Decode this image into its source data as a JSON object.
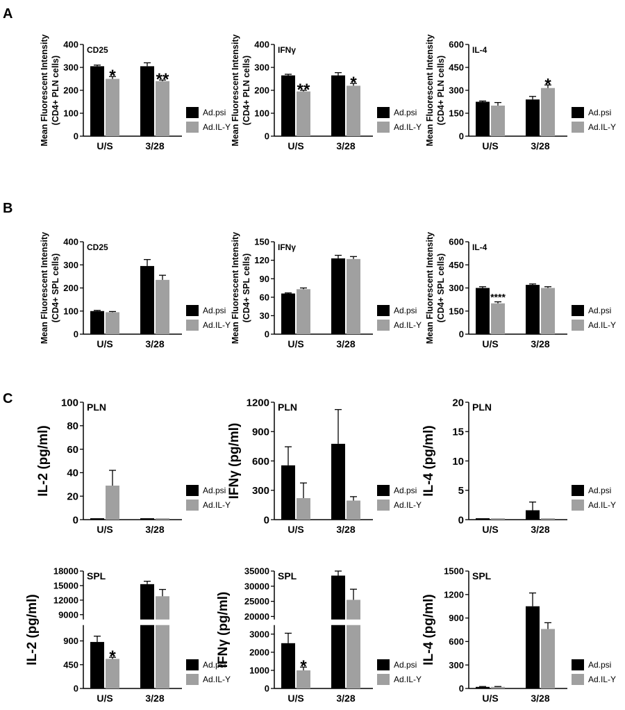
{
  "figure": {
    "panel_letters": [
      "A",
      "B",
      "C"
    ],
    "legend_labels": [
      "Ad.psi",
      "Ad.IL-Y"
    ],
    "colors": {
      "Ad.psi": "#000000",
      "Ad.IL-Y": "#a0a0a0"
    }
  },
  "chart_data": [
    {
      "type": "bar",
      "panel": "A",
      "subtitle": "CD25",
      "ylabel": "Mean Fluorescent Intensity (CD4+ PLN cells)",
      "categories": [
        "U/S",
        "3/28"
      ],
      "ylim": [
        0,
        400
      ],
      "yticks": [
        0,
        100,
        200,
        300,
        400
      ],
      "series": [
        {
          "name": "Ad.psi",
          "values": [
            305,
            305
          ],
          "errors": [
            5,
            15
          ]
        },
        {
          "name": "Ad.IL-Y",
          "values": [
            250,
            240
          ],
          "errors": [
            10,
            5
          ]
        }
      ],
      "annotations": [
        "*",
        "**"
      ]
    },
    {
      "type": "bar",
      "panel": "A",
      "subtitle": "IFNγ",
      "ylabel": "Mean Fluorescent Intensity (CD4+ PLN cells)",
      "categories": [
        "U/S",
        "3/28"
      ],
      "ylim": [
        0,
        400
      ],
      "yticks": [
        0,
        100,
        200,
        300,
        400
      ],
      "series": [
        {
          "name": "Ad.psi",
          "values": [
            265,
            265
          ],
          "errors": [
            5,
            12
          ]
        },
        {
          "name": "Ad.IL-Y",
          "values": [
            195,
            220
          ],
          "errors": [
            5,
            10
          ]
        }
      ],
      "annotations": [
        "**",
        "*"
      ]
    },
    {
      "type": "bar",
      "panel": "A",
      "subtitle": "IL-4",
      "ylabel": "Mean Fluorescent Intensity (CD4+ PLN cells)",
      "categories": [
        "U/S",
        "3/28"
      ],
      "ylim": [
        0,
        600
      ],
      "yticks": [
        0,
        150,
        300,
        450,
        600
      ],
      "series": [
        {
          "name": "Ad.psi",
          "values": [
            225,
            240
          ],
          "errors": [
            5,
            20
          ]
        },
        {
          "name": "Ad.IL-Y",
          "values": [
            200,
            315
          ],
          "errors": [
            20,
            20
          ]
        }
      ],
      "annotations": [
        "",
        "*"
      ]
    },
    {
      "type": "bar",
      "panel": "B",
      "subtitle": "CD25",
      "ylabel": "Mean Fluorescent Intensity (CD4+ SPL cells)",
      "categories": [
        "U/S",
        "3/28"
      ],
      "ylim": [
        0,
        400
      ],
      "yticks": [
        0,
        100,
        200,
        300,
        400
      ],
      "series": [
        {
          "name": "Ad.psi",
          "values": [
            100,
            295
          ],
          "errors": [
            3,
            28
          ]
        },
        {
          "name": "Ad.IL-Y",
          "values": [
            95,
            235
          ],
          "errors": [
            3,
            20
          ]
        }
      ],
      "annotations": [
        "",
        ""
      ]
    },
    {
      "type": "bar",
      "panel": "B",
      "subtitle": "IFNγ",
      "ylabel": "Mean Fluorescent Intensity (CD4+ SPL cells)",
      "categories": [
        "U/S",
        "3/28"
      ],
      "ylim": [
        0,
        150
      ],
      "yticks": [
        0,
        30,
        60,
        90,
        120,
        150
      ],
      "series": [
        {
          "name": "Ad.psi",
          "values": [
            66,
            123
          ],
          "errors": [
            1,
            5
          ]
        },
        {
          "name": "Ad.IL-Y",
          "values": [
            73,
            122
          ],
          "errors": [
            2,
            4
          ]
        }
      ],
      "annotations": [
        "",
        ""
      ]
    },
    {
      "type": "bar",
      "panel": "B",
      "subtitle": "IL-4",
      "ylabel": "Mean Fluorescent Intensity (CD4+ SPL cells)",
      "categories": [
        "U/S",
        "3/28"
      ],
      "ylim": [
        0,
        600
      ],
      "yticks": [
        0,
        150,
        300,
        450,
        600
      ],
      "series": [
        {
          "name": "Ad.psi",
          "values": [
            300,
            320
          ],
          "errors": [
            8,
            6
          ]
        },
        {
          "name": "Ad.IL-Y",
          "values": [
            200,
            300
          ],
          "errors": [
            10,
            8
          ]
        }
      ],
      "annotations": [
        "****",
        ""
      ]
    },
    {
      "type": "bar",
      "panel": "C",
      "subtitle": "PLN",
      "ylabel": "IL-2 (pg/ml)",
      "categories": [
        "U/S",
        "3/28"
      ],
      "ylim": [
        0,
        100
      ],
      "yticks": [
        0,
        20,
        40,
        60,
        80,
        100
      ],
      "series": [
        {
          "name": "Ad.psi",
          "values": [
            0,
            0
          ],
          "errors": [
            0,
            0
          ]
        },
        {
          "name": "Ad.IL-Y",
          "values": [
            29,
            0
          ],
          "errors": [
            13,
            0
          ]
        }
      ],
      "annotations": [
        "",
        ""
      ]
    },
    {
      "type": "bar",
      "panel": "C",
      "subtitle": "PLN",
      "ylabel": "IFNγ (pg/ml)",
      "categories": [
        "U/S",
        "3/28"
      ],
      "ylim": [
        0,
        1200
      ],
      "yticks": [
        0,
        300,
        600,
        900,
        1200
      ],
      "series": [
        {
          "name": "Ad.psi",
          "values": [
            555,
            775
          ],
          "errors": [
            190,
            350
          ]
        },
        {
          "name": "Ad.IL-Y",
          "values": [
            220,
            195
          ],
          "errors": [
            155,
            40
          ]
        }
      ],
      "annotations": [
        "",
        ""
      ]
    },
    {
      "type": "bar",
      "panel": "C",
      "subtitle": "PLN",
      "ylabel": "IL-4 (pg/ml)",
      "categories": [
        "U/S",
        "3/28"
      ],
      "ylim": [
        0,
        20
      ],
      "yticks": [
        0,
        5,
        10,
        15,
        20
      ],
      "series": [
        {
          "name": "Ad.psi",
          "values": [
            0,
            1.6
          ],
          "errors": [
            0,
            1.4
          ]
        },
        {
          "name": "Ad.IL-Y",
          "values": [
            0,
            0
          ],
          "errors": [
            0,
            0
          ]
        }
      ],
      "annotations": [
        "",
        ""
      ]
    },
    {
      "type": "bar",
      "panel": "C",
      "subtitle": "SPL",
      "ylabel": "IL-2 (pg/ml)",
      "categories": [
        "U/S",
        "3/28"
      ],
      "axis_break": {
        "lower": {
          "ylim": [
            0,
            1200
          ],
          "yticks": [
            0,
            450,
            900
          ]
        },
        "upper": {
          "ylim": [
            8000,
            18000
          ],
          "yticks": [
            9000,
            12000,
            15000,
            18000
          ]
        }
      },
      "series": [
        {
          "name": "Ad.psi",
          "values": [
            880,
            15300
          ],
          "errors": [
            110,
            600
          ]
        },
        {
          "name": "Ad.IL-Y",
          "values": [
            560,
            12800
          ],
          "errors": [
            30,
            1400
          ]
        }
      ],
      "annotations": [
        "*",
        ""
      ]
    },
    {
      "type": "bar",
      "panel": "C",
      "subtitle": "SPL",
      "ylabel": "IFNγ (pg/ml)",
      "categories": [
        "U/S",
        "3/28"
      ],
      "axis_break": {
        "lower": {
          "ylim": [
            0,
            3500
          ],
          "yticks": [
            0,
            1000,
            2000,
            3000
          ]
        },
        "upper": {
          "ylim": [
            19000,
            35000
          ],
          "yticks": [
            20000,
            25000,
            30000,
            35000
          ]
        }
      },
      "series": [
        {
          "name": "Ad.psi",
          "values": [
            2500,
            33500
          ],
          "errors": [
            550,
            1500
          ]
        },
        {
          "name": "Ad.IL-Y",
          "values": [
            1000,
            25500
          ],
          "errors": [
            180,
            3500
          ]
        }
      ],
      "annotations": [
        "*",
        ""
      ]
    },
    {
      "type": "bar",
      "panel": "C",
      "subtitle": "SPL",
      "ylabel": "IL-4 (pg/ml)",
      "categories": [
        "U/S",
        "3/28"
      ],
      "ylim": [
        0,
        1500
      ],
      "yticks": [
        0,
        300,
        600,
        900,
        1200,
        1500
      ],
      "series": [
        {
          "name": "Ad.psi",
          "values": [
            20,
            1050
          ],
          "errors": [
            5,
            170
          ]
        },
        {
          "name": "Ad.IL-Y",
          "values": [
            20,
            760
          ],
          "errors": [
            5,
            80
          ]
        }
      ],
      "annotations": [
        "",
        ""
      ]
    }
  ]
}
